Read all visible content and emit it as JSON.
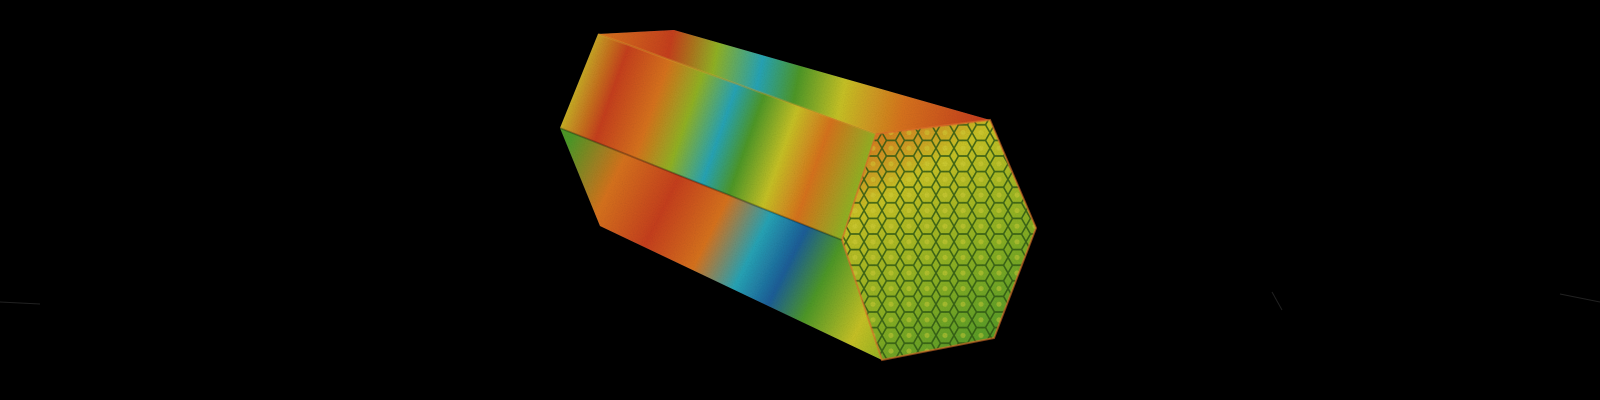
{
  "scene": {
    "subject": "hexagonal-prism-heatmap-render",
    "colors": {
      "background": "#000000",
      "red": "#c8401c",
      "orange": "#d9741e",
      "yellow": "#c9c426",
      "lime": "#93b424",
      "green": "#4f9a28",
      "cyan": "#27a6b8",
      "blue": "#1c5f9a",
      "cell_edge": "#2f5a14",
      "cell_highlight": "#d6d23a"
    }
  }
}
